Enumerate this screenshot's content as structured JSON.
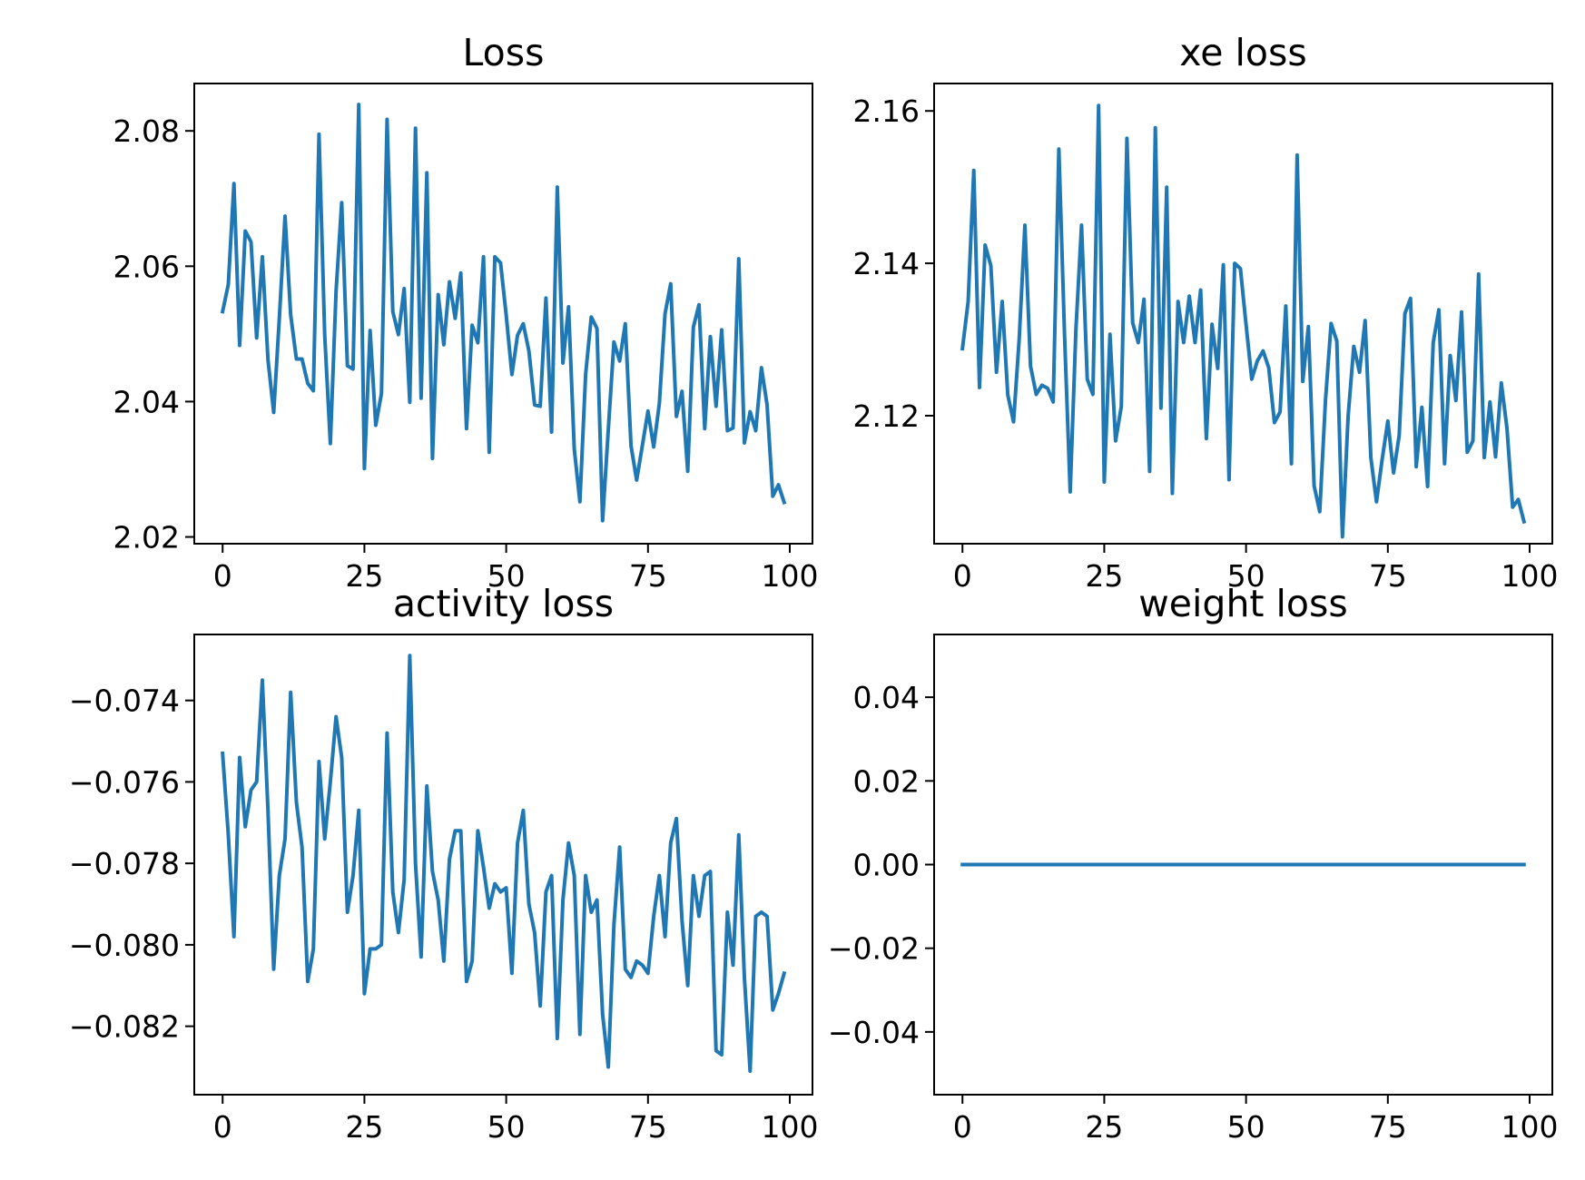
{
  "chart_data": [
    {
      "type": "line",
      "title": "Loss",
      "xlabel": "",
      "ylabel": "",
      "xlim": [
        -5,
        104
      ],
      "ylim": [
        2.019,
        2.087
      ],
      "xticks": [
        0,
        25,
        50,
        75,
        100
      ],
      "xtick_labels": [
        "0",
        "25",
        "50",
        "75",
        "100"
      ],
      "yticks": [
        2.02,
        2.04,
        2.06,
        2.08
      ],
      "ytick_labels": [
        "2.02",
        "2.04",
        "2.06",
        "2.08"
      ],
      "grid": false,
      "legend": "none",
      "color": "#1f77b4",
      "x": [
        0,
        1,
        2,
        3,
        4,
        5,
        6,
        7,
        8,
        9,
        10,
        11,
        12,
        13,
        14,
        15,
        16,
        17,
        18,
        19,
        20,
        21,
        22,
        23,
        24,
        25,
        26,
        27,
        28,
        29,
        30,
        31,
        32,
        33,
        34,
        35,
        36,
        37,
        38,
        39,
        40,
        41,
        42,
        43,
        44,
        45,
        46,
        47,
        48,
        49,
        50,
        51,
        52,
        53,
        54,
        55,
        56,
        57,
        58,
        59,
        60,
        61,
        62,
        63,
        64,
        65,
        66,
        67,
        68,
        69,
        70,
        71,
        72,
        73,
        74,
        75,
        76,
        77,
        78,
        79,
        80,
        81,
        82,
        83,
        84,
        85,
        86,
        87,
        88,
        89,
        90,
        91,
        92,
        93,
        94,
        95,
        96,
        97,
        98,
        99
      ],
      "values": [
        2.0533,
        2.0573,
        2.0722,
        2.0483,
        2.0652,
        2.0636,
        2.0494,
        2.0614,
        2.0462,
        2.0384,
        2.0523,
        2.0674,
        2.0528,
        2.0463,
        2.0463,
        2.0427,
        2.0416,
        2.0795,
        2.0498,
        2.0338,
        2.0563,
        2.0694,
        2.0453,
        2.0448,
        2.0839,
        2.0301,
        2.0505,
        2.0365,
        2.0412,
        2.0817,
        2.0533,
        2.0499,
        2.0567,
        2.0399,
        2.0804,
        2.0405,
        2.0738,
        2.0316,
        2.0558,
        2.0484,
        2.0577,
        2.0523,
        2.059,
        2.036,
        2.0513,
        2.0487,
        2.0614,
        2.0325,
        2.0614,
        2.0605,
        2.0528,
        2.044,
        2.0498,
        2.0515,
        2.0475,
        2.0395,
        2.0393,
        2.0553,
        2.0355,
        2.0717,
        2.0457,
        2.054,
        2.033,
        2.0252,
        2.044,
        2.0525,
        2.0508,
        2.0224,
        2.0359,
        2.0488,
        2.046,
        2.0515,
        2.0335,
        2.0284,
        2.0335,
        2.0386,
        2.0333,
        2.0397,
        2.053,
        2.0574,
        2.0378,
        2.0415,
        2.0297,
        2.051,
        2.0543,
        2.036,
        2.0496,
        2.0393,
        2.0506,
        2.0357,
        2.0361,
        2.0611,
        2.0339,
        2.0385,
        2.0357,
        2.045,
        2.0395,
        2.026,
        2.0277,
        2.0251
      ]
    },
    {
      "type": "line",
      "title": "xe loss",
      "xlabel": "",
      "ylabel": "",
      "xlim": [
        -5,
        104
      ],
      "ylim": [
        2.1032,
        2.1636
      ],
      "xticks": [
        0,
        25,
        50,
        75,
        100
      ],
      "xtick_labels": [
        "0",
        "25",
        "50",
        "75",
        "100"
      ],
      "yticks": [
        2.12,
        2.14,
        2.16
      ],
      "ytick_labels": [
        "2.12",
        "2.14",
        "2.16"
      ],
      "grid": false,
      "legend": "none",
      "color": "#1f77b4",
      "x": [
        0,
        1,
        2,
        3,
        4,
        5,
        6,
        7,
        8,
        9,
        10,
        11,
        12,
        13,
        14,
        15,
        16,
        17,
        18,
        19,
        20,
        21,
        22,
        23,
        24,
        25,
        26,
        27,
        28,
        29,
        30,
        31,
        32,
        33,
        34,
        35,
        36,
        37,
        38,
        39,
        40,
        41,
        42,
        43,
        44,
        45,
        46,
        47,
        48,
        49,
        50,
        51,
        52,
        53,
        54,
        55,
        56,
        57,
        58,
        59,
        60,
        61,
        62,
        63,
        64,
        65,
        66,
        67,
        68,
        69,
        70,
        71,
        72,
        73,
        74,
        75,
        76,
        77,
        78,
        79,
        80,
        81,
        82,
        83,
        84,
        85,
        86,
        87,
        88,
        89,
        90,
        91,
        92,
        93,
        94,
        95,
        96,
        97,
        98,
        99
      ],
      "values": [
        2.1288,
        2.135,
        2.1522,
        2.1237,
        2.1424,
        2.1397,
        2.1257,
        2.135,
        2.1227,
        2.1192,
        2.13,
        2.145,
        2.1265,
        2.1228,
        2.124,
        2.1236,
        2.1218,
        2.155,
        2.1305,
        2.11,
        2.1313,
        2.145,
        2.1248,
        2.1228,
        2.1607,
        2.1113,
        2.1307,
        2.1167,
        2.1212,
        2.1564,
        2.1322,
        2.1296,
        2.1353,
        2.1127,
        2.1578,
        2.121,
        2.15,
        2.1098,
        2.135,
        2.1296,
        2.1357,
        2.1296,
        2.1365,
        2.117,
        2.132,
        2.1262,
        2.1398,
        2.1116,
        2.14,
        2.1393,
        2.132,
        2.1248,
        2.1272,
        2.1285,
        2.1263,
        2.1191,
        2.1205,
        2.1344,
        2.1137,
        2.1542,
        2.1245,
        2.1317,
        2.1108,
        2.1074,
        2.122,
        2.1321,
        2.1298,
        2.1041,
        2.12,
        2.1291,
        2.1257,
        2.1325,
        2.1145,
        2.1087,
        2.1143,
        2.1193,
        2.1125,
        2.1174,
        2.1334,
        2.1354,
        2.1133,
        2.1211,
        2.1107,
        2.1296,
        2.1339,
        2.1137,
        2.1279,
        2.122,
        2.1336,
        2.1152,
        2.1167,
        2.1386,
        2.1145,
        2.1218,
        2.1146,
        2.1243,
        2.1184,
        2.108,
        2.109,
        2.1061
      ]
    },
    {
      "type": "line",
      "title": "activity loss",
      "xlabel": "",
      "ylabel": "",
      "xlim": [
        -5,
        104
      ],
      "ylim": [
        -0.08368,
        -0.07238
      ],
      "xticks": [
        0,
        25,
        50,
        75,
        100
      ],
      "xtick_labels": [
        "0",
        "25",
        "50",
        "75",
        "100"
      ],
      "yticks": [
        -0.082,
        -0.08,
        -0.078,
        -0.076,
        -0.074
      ],
      "ytick_labels": [
        "−0.082",
        "−0.080",
        "−0.078",
        "−0.076",
        "−0.074"
      ],
      "grid": false,
      "legend": "none",
      "color": "#1f77b4",
      "x": [
        0,
        1,
        2,
        3,
        4,
        5,
        6,
        7,
        8,
        9,
        10,
        11,
        12,
        13,
        14,
        15,
        16,
        17,
        18,
        19,
        20,
        21,
        22,
        23,
        24,
        25,
        26,
        27,
        28,
        29,
        30,
        31,
        32,
        33,
        34,
        35,
        36,
        37,
        38,
        39,
        40,
        41,
        42,
        43,
        44,
        45,
        46,
        47,
        48,
        49,
        50,
        51,
        52,
        53,
        54,
        55,
        56,
        57,
        58,
        59,
        60,
        61,
        62,
        63,
        64,
        65,
        66,
        67,
        68,
        69,
        70,
        71,
        72,
        73,
        74,
        75,
        76,
        77,
        78,
        79,
        80,
        81,
        82,
        83,
        84,
        85,
        86,
        87,
        88,
        89,
        90,
        91,
        92,
        93,
        94,
        95,
        96,
        97,
        98,
        99
      ],
      "values": [
        -0.0753,
        -0.0773,
        -0.0798,
        -0.0754,
        -0.0771,
        -0.0762,
        -0.076,
        -0.0735,
        -0.0767,
        -0.0806,
        -0.0783,
        -0.0774,
        -0.0738,
        -0.0765,
        -0.0776,
        -0.0809,
        -0.0801,
        -0.0755,
        -0.0774,
        -0.076,
        -0.0744,
        -0.0754,
        -0.0792,
        -0.0783,
        -0.0767,
        -0.0812,
        -0.0801,
        -0.0801,
        -0.08,
        -0.0748,
        -0.0787,
        -0.0797,
        -0.0784,
        -0.0729,
        -0.078,
        -0.0803,
        -0.0761,
        -0.0782,
        -0.0789,
        -0.0804,
        -0.0779,
        -0.0772,
        -0.0772,
        -0.0809,
        -0.0804,
        -0.0772,
        -0.0781,
        -0.0791,
        -0.0785,
        -0.0787,
        -0.0786,
        -0.0807,
        -0.0775,
        -0.0767,
        -0.079,
        -0.0797,
        -0.0815,
        -0.0787,
        -0.0783,
        -0.0823,
        -0.0789,
        -0.0775,
        -0.0783,
        -0.0822,
        -0.0783,
        -0.0792,
        -0.0789,
        -0.0817,
        -0.083,
        -0.0795,
        -0.0776,
        -0.0806,
        -0.0808,
        -0.0804,
        -0.0805,
        -0.0807,
        -0.0793,
        -0.0783,
        -0.0798,
        -0.0775,
        -0.0769,
        -0.0794,
        -0.081,
        -0.0783,
        -0.0793,
        -0.0783,
        -0.0782,
        -0.0826,
        -0.0827,
        -0.0792,
        -0.0805,
        -0.0773,
        -0.0808,
        -0.0831,
        -0.0793,
        -0.0792,
        -0.0793,
        -0.0816,
        -0.0812,
        -0.0807
      ]
    },
    {
      "type": "line",
      "title": "weight loss",
      "xlabel": "",
      "ylabel": "",
      "xlim": [
        -5,
        104
      ],
      "ylim": [
        -0.055,
        0.055
      ],
      "xticks": [
        0,
        25,
        50,
        75,
        100
      ],
      "xtick_labels": [
        "0",
        "25",
        "50",
        "75",
        "100"
      ],
      "yticks": [
        -0.04,
        -0.02,
        0.0,
        0.02,
        0.04
      ],
      "ytick_labels": [
        "−0.04",
        "−0.02",
        "0.00",
        "0.02",
        "0.04"
      ],
      "grid": false,
      "legend": "none",
      "color": "#1f77b4",
      "x": [
        0,
        99
      ],
      "values": [
        0,
        0
      ]
    }
  ]
}
